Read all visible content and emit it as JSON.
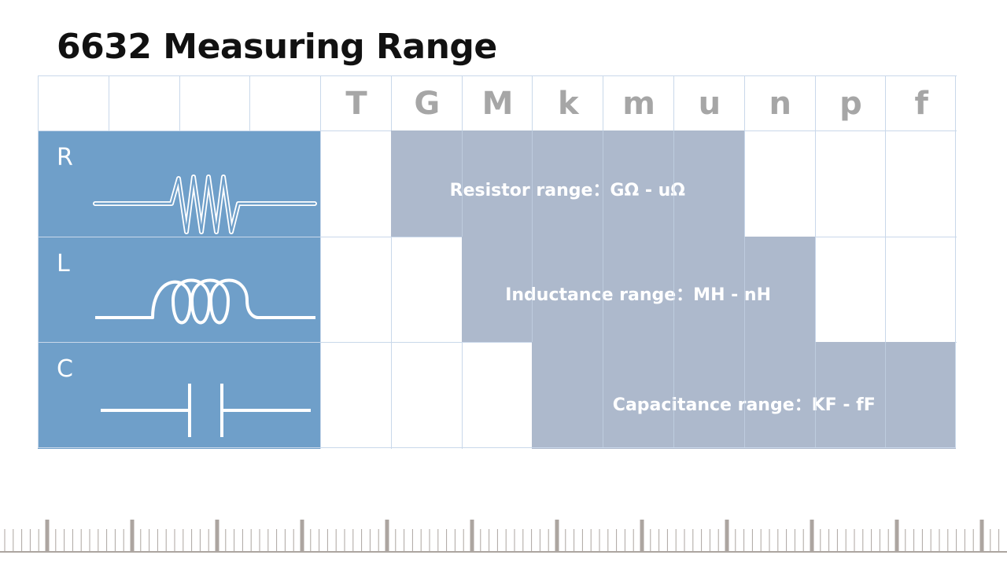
{
  "title": "6632 Measuring Range",
  "header": {
    "blank_columns": 4,
    "units": [
      "T",
      "G",
      "M",
      "k",
      "m",
      "u",
      "n",
      "p",
      "f"
    ]
  },
  "rows": [
    {
      "letter": "R",
      "component": "resistor",
      "range_label": "Resistor range：GΩ - uΩ",
      "range_from": "G",
      "range_to": "u"
    },
    {
      "letter": "L",
      "component": "inductor",
      "range_label": "Inductance range：MH - nH",
      "range_from": "M",
      "range_to": "n"
    },
    {
      "letter": "C",
      "component": "capacitor",
      "range_label": "Capacitance range：KF - fF",
      "range_from": "k",
      "range_to": "f"
    }
  ],
  "colors": {
    "component_bg": "#6f9fc9",
    "range_bg": "#adb9cc",
    "grid_line": "#c9d8ea",
    "header_text": "#a6a6a6",
    "ruler": "#aca5a0"
  },
  "icons": [
    "resistor-symbol-icon",
    "inductor-symbol-icon",
    "capacitor-symbol-icon"
  ]
}
